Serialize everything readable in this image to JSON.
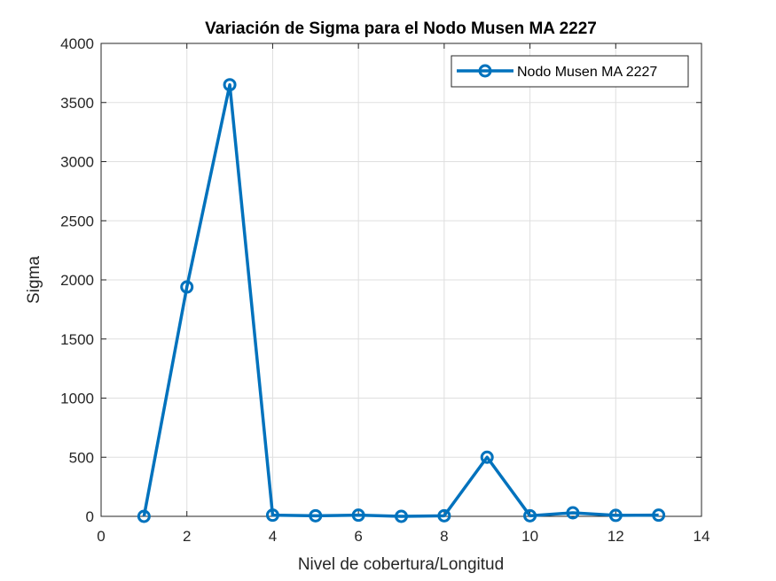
{
  "chart_data": {
    "type": "line",
    "title": "Variación de Sigma para el Nodo Musen MA 2227",
    "xlabel": "Nivel de cobertura/Longitud",
    "ylabel": "Sigma",
    "xlim": [
      0,
      14
    ],
    "ylim": [
      0,
      4000
    ],
    "xticks": [
      0,
      2,
      4,
      6,
      8,
      10,
      12,
      14
    ],
    "yticks": [
      0,
      500,
      1000,
      1500,
      2000,
      2500,
      3000,
      3500,
      4000
    ],
    "grid": true,
    "legend_position": "top-right",
    "series": [
      {
        "name": "Nodo Musen MA 2227",
        "color": "#0072BD",
        "marker": "circle",
        "x": [
          1,
          2,
          3,
          4,
          5,
          6,
          7,
          8,
          9,
          10,
          11,
          12,
          13
        ],
        "y": [
          0,
          1940,
          3650,
          10,
          5,
          10,
          0,
          5,
          500,
          5,
          30,
          8,
          10
        ]
      }
    ]
  }
}
